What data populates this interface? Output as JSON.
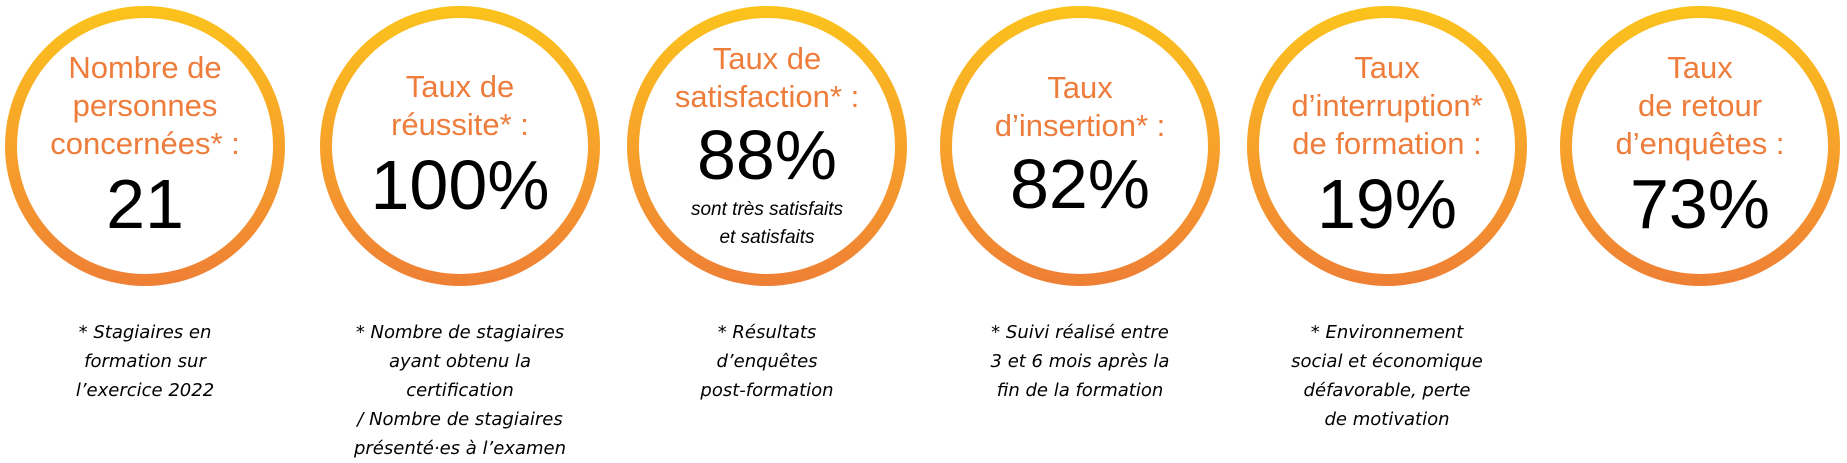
{
  "stats": [
    {
      "label": "Nombre de\npersonnes\nconcernées* :",
      "value": "21",
      "note": "* Stagiaires en\nformation sur\nl’exercice 2022"
    },
    {
      "label": "Taux de\nréussite* :",
      "value": "100%",
      "note": "* Nombre de stagiaires\nayant obtenu la\ncertification\n/ Nombre de stagiaires\nprésenté·es à l’examen"
    },
    {
      "label": "Taux de\nsatisfaction* :",
      "value": "88%",
      "sub": "sont très satisfaits\net satisfaits",
      "note": "* Résultats\nd’enquêtes\npost-formation"
    },
    {
      "label": "Taux\nd’insertion* :",
      "value": "82%",
      "note": "* Suivi réalisé entre\n3 et 6 mois après la\nfin de la formation"
    },
    {
      "label": "Taux\nd’interruption*\nde formation :",
      "value": "19%",
      "note": "* Environnement\nsocial et économique\ndéfavorable, perte\nde motivation"
    },
    {
      "label": "Taux\nde retour\nd’enquêtes :",
      "value": "73%"
    }
  ],
  "colors": {
    "ring_top": "#fbc31c",
    "ring_bottom": "#ee7f35",
    "label": "#ee7d3c",
    "value": "#000000"
  }
}
